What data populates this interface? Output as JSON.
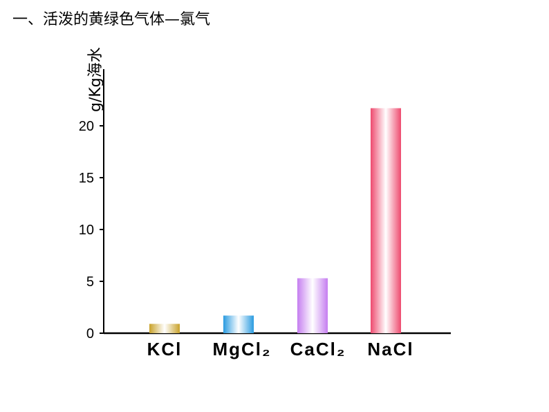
{
  "slide": {
    "title": "一、活泼的黄绿色气体—氯气"
  },
  "chart_data": {
    "type": "bar",
    "title": "",
    "ylabel": "g/Kg海水",
    "xlabel": "",
    "categories": [
      "KCl",
      "MgCl₂",
      "CaCl₂",
      "NaCl"
    ],
    "values": [
      0.9,
      1.7,
      5.3,
      21.7
    ],
    "ylim": [
      0,
      25
    ],
    "yticks": [
      0,
      5,
      10,
      15,
      20
    ],
    "grid": false,
    "colors": {
      "KCl": "#c9a22a",
      "MgCl₂": "#2a9be0",
      "CaCl₂": "#c57df0",
      "NaCl": "#ee4a6e"
    }
  }
}
